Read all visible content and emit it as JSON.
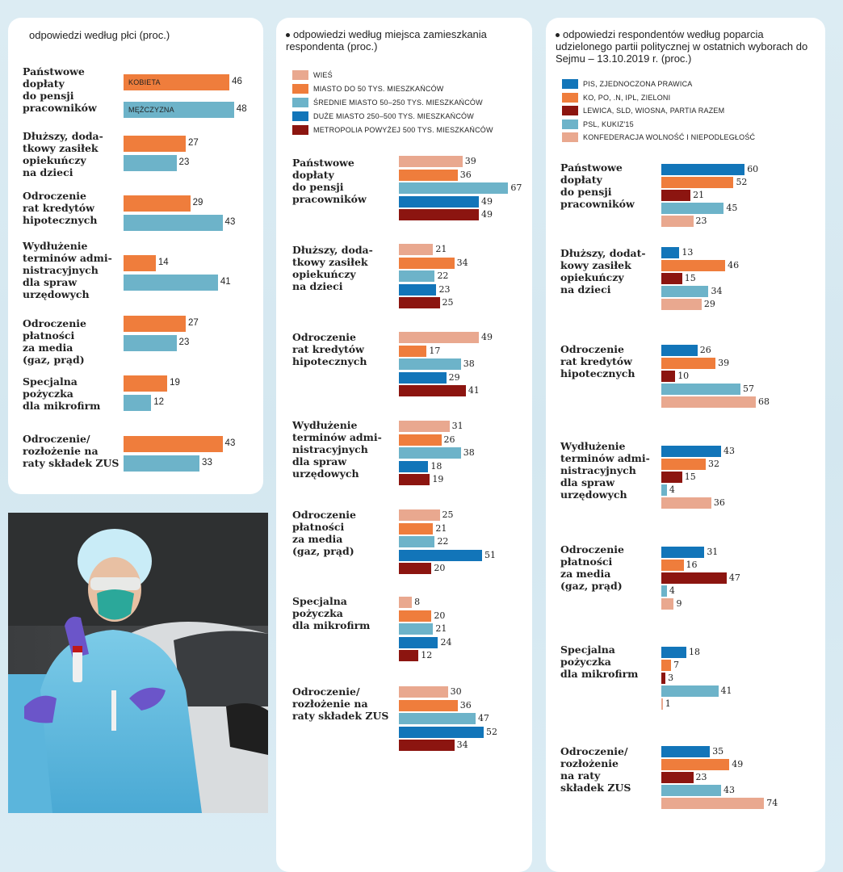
{
  "colors": {
    "wies": "#e9a88f",
    "miasto50": "#ef7d3c",
    "srednie": "#6db3c9",
    "duze": "#1275b9",
    "metropolia": "#8c1510",
    "kobieta": "#ef7d3c",
    "mezczyzna": "#6db3c9",
    "pis": "#1275b9",
    "ko": "#ef7d3c",
    "lewica": "#8c1510",
    "psl": "#6db3c9",
    "konf": "#e9a88f"
  },
  "chart_data": [
    {
      "type": "bar",
      "title": "odpowiedzi według płci (proc.)",
      "categories": [
        "Państwowe dopłaty do pensji pracowników",
        "Dłuższy, dodatkowy zasiłek opiekuńczy na dzieci",
        "Odroczenie rat kredytów hipotecznych",
        "Wydłużenie terminów administracyjnych dla spraw urzędowych",
        "Odroczenie płatności za media (gaz, prąd)",
        "Specjalna pożyczka dla mikrofirm",
        "Odroczenie/ rozłożenie na raty składek ZUS"
      ],
      "series": [
        {
          "name": "KOBIETA",
          "color_key": "kobieta",
          "values": [
            46,
            27,
            29,
            14,
            27,
            19,
            43
          ]
        },
        {
          "name": "MĘŻCZYZNA",
          "color_key": "mezczyzna",
          "values": [
            48,
            23,
            43,
            41,
            23,
            12,
            33
          ]
        }
      ]
    },
    {
      "type": "bar",
      "title": "odpowiedzi według miejsca zamieszkania respondenta (proc.)",
      "categories": [
        "Państwowe dopłaty do pensji pracowników",
        "Dłuższy, dodatkowy zasiłek opiekuńczy na dzieci",
        "Odroczenie rat kredytów hipotecznych",
        "Wydłużenie terminów administracyjnych dla spraw urzędowych",
        "Odroczenie płatności za media (gaz, prąd)",
        "Specjalna pożyczka dla mikrofirm",
        "Odroczenie/ rozłożenie na raty składek ZUS"
      ],
      "series": [
        {
          "name": "WIEŚ",
          "color_key": "wies",
          "values": [
            39,
            21,
            49,
            31,
            25,
            8,
            30
          ]
        },
        {
          "name": "MIASTO DO 50 TYS. MIESZKAŃCÓW",
          "color_key": "miasto50",
          "values": [
            36,
            34,
            17,
            26,
            21,
            20,
            36
          ]
        },
        {
          "name": "ŚREDNIE MIASTO 50–250 TYS. MIESZKAŃCÓW",
          "color_key": "srednie",
          "values": [
            67,
            22,
            38,
            38,
            22,
            21,
            47
          ]
        },
        {
          "name": "DUŻE MIASTO 250–500 TYS. MIESZKAŃCÓW",
          "color_key": "duze",
          "values": [
            49,
            23,
            29,
            18,
            51,
            24,
            52
          ]
        },
        {
          "name": "METROPOLIA POWYŻEJ 500 TYS. MIESZKAŃCÓW",
          "color_key": "metropolia",
          "values": [
            49,
            25,
            41,
            19,
            20,
            12,
            34
          ]
        }
      ]
    },
    {
      "type": "bar",
      "title": "odpowiedzi respondentów według poparcia udzielonego partii politycznej w ostatnich wyborach do Sejmu – 13.10.2019 r. (proc.)",
      "categories": [
        "Państwowe dopłaty do pensji pracowników",
        "Dłuższy, dodatkowy zasiłek opiekuńczy na dzieci",
        "Odroczenie rat kredytów hipotecznych",
        "Wydłużenie terminów administracyjnych dla spraw urzędowych",
        "Odroczenie płatności za media (gaz, prąd)",
        "Specjalna pożyczka dla mikrofirm",
        "Odroczenie/ rozłożenie na raty składek ZUS"
      ],
      "series": [
        {
          "name": "PIS, ZJEDNOCZONA PRAWICA",
          "color_key": "pis",
          "values": [
            60,
            13,
            26,
            43,
            31,
            18,
            35
          ]
        },
        {
          "name": "KO, PO, .N, IPL, ZIELONI",
          "color_key": "ko",
          "values": [
            52,
            46,
            39,
            32,
            16,
            7,
            49
          ]
        },
        {
          "name": "LEWICA, SLD, WIOSNA, PARTIA RAZEM",
          "color_key": "lewica",
          "values": [
            21,
            15,
            10,
            15,
            47,
            3,
            23
          ]
        },
        {
          "name": "PSL, KUKIZ'15",
          "color_key": "psl",
          "values": [
            45,
            34,
            57,
            4,
            4,
            41,
            43
          ]
        },
        {
          "name": "KONFEDERACJA WOLNOŚĆ I NIEPODLEGŁOŚĆ",
          "color_key": "konf",
          "values": [
            23,
            29,
            68,
            36,
            9,
            1,
            74
          ]
        }
      ]
    }
  ],
  "labels": {
    "p1": [
      [
        "Państwowe",
        "dopłaty",
        "do pensji",
        "pracowników"
      ],
      [
        "Dłuższy, doda-",
        "tkowy zasiłek",
        "opiekuńczy",
        "na dzieci"
      ],
      [
        "Odroczenie",
        "rat kredytów",
        "hipotecznych"
      ],
      [
        "Wydłużenie",
        "terminów admi-",
        "nistracyjnych",
        "dla spraw",
        "urzędowych"
      ],
      [
        "Odroczenie",
        "płatności",
        "za media",
        "(gaz, prąd)"
      ],
      [
        "Specjalna",
        "pożyczka",
        "dla mikrofirm"
      ],
      [
        "Odroczenie/",
        "rozłożenie na",
        "raty składek ZUS"
      ]
    ],
    "p2": [
      [
        "Państwowe",
        "dopłaty",
        "do pensji",
        "pracowników"
      ],
      [
        "Dłuższy, doda-",
        "tkowy zasiłek",
        "opiekuńczy",
        "na dzieci"
      ],
      [
        "Odroczenie",
        "rat kredytów",
        "hipotecznych"
      ],
      [
        "Wydłużenie",
        "terminów admi-",
        "nistracyjnych",
        "dla spraw",
        "urzędowych"
      ],
      [
        "Odroczenie",
        "płatności",
        "za media",
        "(gaz, prąd)"
      ],
      [
        "Specjalna",
        "pożyczka",
        "dla mikrofirm"
      ],
      [
        "Odroczenie/",
        "rozłożenie na",
        "raty składek ZUS"
      ]
    ],
    "p3": [
      [
        "Państwowe",
        "dopłaty",
        "do pensji",
        "pracowników"
      ],
      [
        "Dłuższy, dodat-",
        "kowy zasiłek",
        "opiekuńczy",
        "na dzieci"
      ],
      [
        "Odroczenie",
        "rat kredytów",
        "hipotecznych"
      ],
      [
        "Wydłużenie",
        "terminów admi-",
        "nistracyjnych",
        "dla spraw",
        "urzędowych"
      ],
      [
        "Odroczenie",
        "płatności",
        "za media",
        "(gaz, prąd)"
      ],
      [
        "Specjalna",
        "pożyczka",
        "dla mikrofirm"
      ],
      [
        "Odroczenie/",
        "rozłożenie",
        "na raty",
        "składek ZUS"
      ]
    ]
  }
}
